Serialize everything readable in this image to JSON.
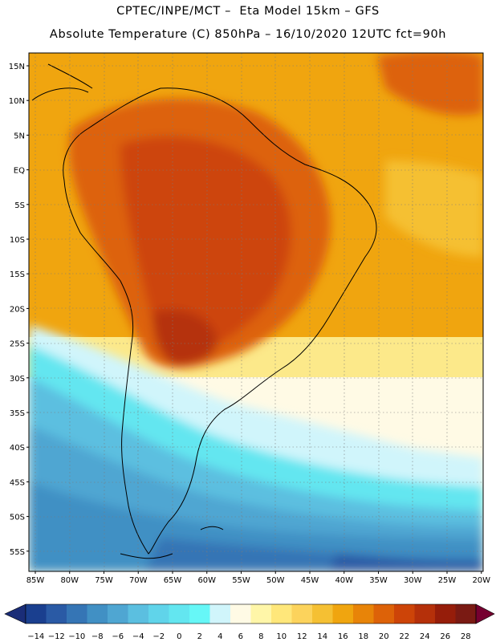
{
  "header": {
    "line1": "CPTEC/INPE/MCT –  Eta Model 15km – GFS",
    "line2": "Absolute Temperature (C) 850hPa – 16/10/2020 12UTC fct=90h"
  },
  "map": {
    "lat_labels": [
      "15N",
      "10N",
      "5N",
      "EQ",
      "5S",
      "10S",
      "15S",
      "20S",
      "25S",
      "30S",
      "35S",
      "40S",
      "45S",
      "50S",
      "55S"
    ],
    "lon_labels": [
      "85W",
      "80W",
      "75W",
      "70W",
      "65W",
      "60W",
      "55W",
      "50W",
      "45W",
      "40W",
      "35W",
      "30W",
      "25W",
      "20W"
    ]
  },
  "colorbar": {
    "labels": [
      "-14",
      "-12",
      "-10",
      "-8",
      "-6",
      "-4",
      "-2",
      "0",
      "2",
      "4",
      "6",
      "8",
      "10",
      "12",
      "14",
      "16",
      "18",
      "20",
      "22",
      "24",
      "26",
      "28"
    ],
    "colors": [
      "#1a3f8f",
      "#2a5aa5",
      "#3575b5",
      "#4190c4",
      "#4fa6d2",
      "#5bbfe0",
      "#60d4ea",
      "#63e6f0",
      "#66f7f7",
      "#d0f5fb",
      "#fffae5",
      "#fff6a8",
      "#ffe77a",
      "#fcd35c",
      "#f5c033",
      "#f0a50f",
      "#e88408",
      "#dd6208",
      "#cd4408",
      "#b5300a",
      "#961d0a",
      "#7a1a13"
    ],
    "left_arrow_color": "#1a2d78",
    "right_arrow_color": "#760030"
  }
}
